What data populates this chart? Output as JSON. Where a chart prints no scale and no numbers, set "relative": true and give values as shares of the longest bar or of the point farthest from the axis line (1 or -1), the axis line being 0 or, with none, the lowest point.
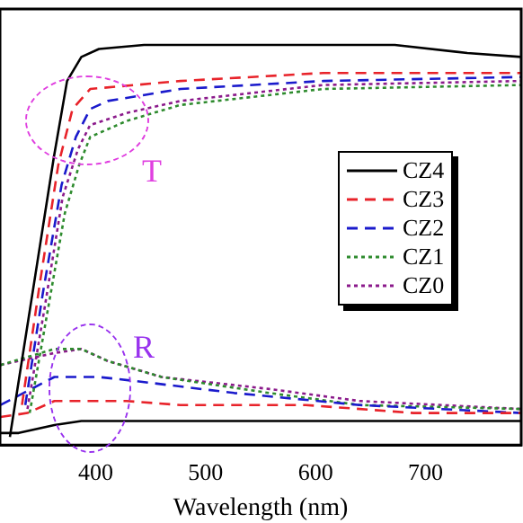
{
  "chart_data": {
    "type": "line",
    "xlabel": "Wavelength (nm)",
    "relative": true,
    "xlim": [
      313,
      787
    ],
    "xticks": [
      400,
      500,
      600,
      700
    ],
    "tick_labels": "x",
    "grid": false,
    "legend": "right",
    "marker": "none",
    "annotations": [
      "T",
      "R"
    ],
    "series": [
      {
        "name": "CZ4",
        "color": "#000000",
        "line_style": "solid",
        "x": [
          322,
          330,
          346,
          362,
          374,
          387,
          403,
          444,
          558,
          672,
          738,
          787
        ],
        "values": [
          0.02,
          0.16,
          0.44,
          0.72,
          0.91,
          0.97,
          0.99,
          1.0,
          1.0,
          1.0,
          0.98,
          0.97
        ]
      },
      {
        "name": "CZ3",
        "color": "#e8232a",
        "line_style": "dashed",
        "x": [
          333,
          349,
          366,
          379,
          395,
          477,
          607,
          787
        ],
        "values": [
          0.1,
          0.4,
          0.7,
          0.84,
          0.89,
          0.91,
          0.93,
          0.93
        ]
      },
      {
        "name": "CZ2",
        "color": "#1a1acc",
        "line_style": "dashed",
        "x": [
          336,
          352,
          369,
          382,
          395,
          411,
          477,
          607,
          787
        ],
        "values": [
          0.1,
          0.38,
          0.65,
          0.77,
          0.84,
          0.86,
          0.89,
          0.91,
          0.92
        ]
      },
      {
        "name": "CZ1",
        "color": "#2e8b2e",
        "line_style": "dotted",
        "x": [
          340,
          356,
          372,
          385,
          395,
          428,
          477,
          607,
          787
        ],
        "values": [
          0.08,
          0.33,
          0.58,
          0.7,
          0.77,
          0.81,
          0.85,
          0.89,
          0.9
        ]
      },
      {
        "name": "CZ0",
        "color": "#8b1a8b",
        "line_style": "dotted",
        "x": [
          338,
          354,
          370,
          384,
          395,
          428,
          477,
          607,
          787
        ],
        "values": [
          0.09,
          0.35,
          0.62,
          0.74,
          0.8,
          0.83,
          0.86,
          0.9,
          0.91
        ]
      },
      {
        "color": "#000000",
        "line_style": "solid",
        "x": [
          313.5,
          330,
          362.5,
          387,
          411,
          477,
          640,
          787
        ],
        "values": [
          0.03,
          0.03,
          0.05,
          0.06,
          0.06,
          0.06,
          0.06,
          0.06
        ]
      },
      {
        "color": "#e8232a",
        "line_style": "dashed",
        "x": [
          313.5,
          338,
          362.5,
          379,
          428,
          477,
          591,
          689,
          787
        ],
        "values": [
          0.07,
          0.08,
          0.11,
          0.11,
          0.11,
          0.1,
          0.1,
          0.08,
          0.08
        ]
      },
      {
        "color": "#1a1acc",
        "line_style": "dashed",
        "x": [
          313.5,
          362.5,
          403,
          436,
          526,
          640,
          787
        ],
        "values": [
          0.1,
          0.17,
          0.17,
          0.16,
          0.13,
          0.1,
          0.08
        ]
      },
      {
        "color": "#2e8b2e",
        "line_style": "dotted",
        "x": [
          313.5,
          362.5,
          387,
          411,
          460,
          558,
          640,
          787
        ],
        "values": [
          0.2,
          0.24,
          0.24,
          0.21,
          0.17,
          0.13,
          0.1,
          0.09
        ]
      },
      {
        "color": "#8b1a8b",
        "line_style": "dotted",
        "x": [
          313.5,
          362.5,
          387,
          411,
          460,
          558,
          640,
          787
        ],
        "values": [
          0.2,
          0.23,
          0.24,
          0.21,
          0.17,
          0.14,
          0.11,
          0.09
        ]
      }
    ]
  }
}
